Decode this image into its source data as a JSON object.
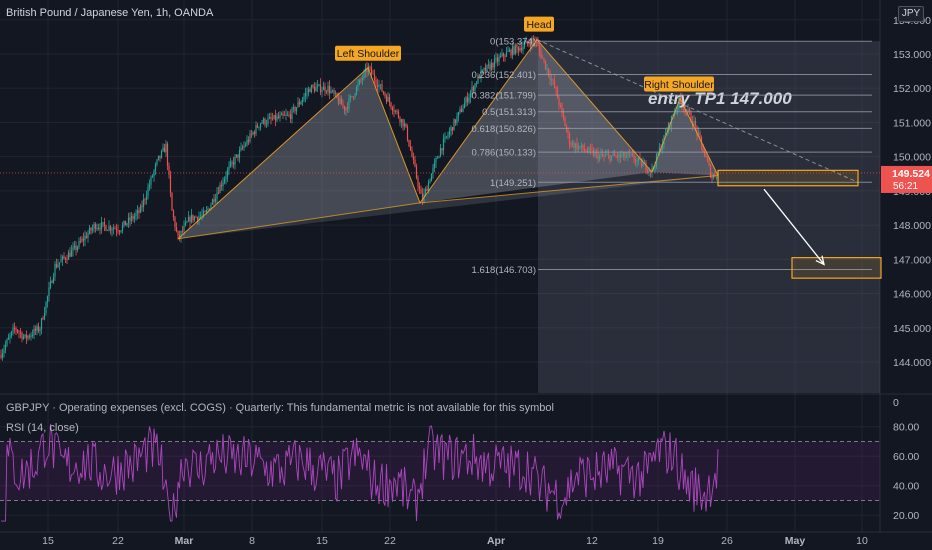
{
  "header": {
    "symbol_title": "British Pound / Japanese Yen, 1h, OANDA",
    "currency_badge": "JPY"
  },
  "fundamental_line": "GBPJPY · Operating expenses (excl. COGS) · Quarterly: This fundamental metric is not available for this symbol",
  "rsi_title": "RSI (14, close)",
  "colors": {
    "background": "#131722",
    "grid": "#1f2430",
    "up": "#26a69a",
    "down": "#ef5350",
    "pattern": "#f5a623",
    "fib": "#9ea4b0",
    "rsi": "#9c27b0",
    "price_tag": "#ef5350"
  },
  "chart_data": [
    {
      "type": "candlestick",
      "title": "British Pound / Japanese Yen, 1h, OANDA",
      "x_axis_labels": [
        "15",
        "22",
        "Mar",
        "8",
        "15",
        "22",
        "Apr",
        "12",
        "19",
        "26",
        "May",
        "10"
      ],
      "y_axis_labels": [
        "154.000",
        "153.000",
        "152.000",
        "151.000",
        "150.000",
        "149.000",
        "148.000",
        "147.000",
        "146.000",
        "145.000",
        "144.000"
      ],
      "ylim": [
        143.55,
        154.35
      ],
      "current_price": "149.524",
      "countdown": "56:21",
      "price_path_anchors": [
        {
          "x": 0,
          "y": 144.2
        },
        {
          "x": 15,
          "y": 145.0
        },
        {
          "x": 25,
          "y": 144.7
        },
        {
          "x": 40,
          "y": 145.0
        },
        {
          "x": 55,
          "y": 146.8
        },
        {
          "x": 75,
          "y": 147.3
        },
        {
          "x": 95,
          "y": 148.0
        },
        {
          "x": 120,
          "y": 147.9
        },
        {
          "x": 140,
          "y": 148.4
        },
        {
          "x": 158,
          "y": 149.9
        },
        {
          "x": 166,
          "y": 150.3
        },
        {
          "x": 172,
          "y": 148.4
        },
        {
          "x": 178,
          "y": 147.6
        },
        {
          "x": 190,
          "y": 148.2
        },
        {
          "x": 205,
          "y": 148.3
        },
        {
          "x": 230,
          "y": 149.7
        },
        {
          "x": 260,
          "y": 151.0
        },
        {
          "x": 290,
          "y": 151.2
        },
        {
          "x": 310,
          "y": 152.0
        },
        {
          "x": 328,
          "y": 152.0
        },
        {
          "x": 345,
          "y": 151.4
        },
        {
          "x": 368,
          "y": 152.6
        },
        {
          "x": 385,
          "y": 151.8
        },
        {
          "x": 405,
          "y": 150.9
        },
        {
          "x": 422,
          "y": 148.7
        },
        {
          "x": 440,
          "y": 150.2
        },
        {
          "x": 460,
          "y": 151.3
        },
        {
          "x": 480,
          "y": 152.4
        },
        {
          "x": 505,
          "y": 153.0
        },
        {
          "x": 535,
          "y": 153.4
        },
        {
          "x": 555,
          "y": 152.0
        },
        {
          "x": 570,
          "y": 150.4
        },
        {
          "x": 600,
          "y": 150.0
        },
        {
          "x": 630,
          "y": 150.0
        },
        {
          "x": 652,
          "y": 149.6
        },
        {
          "x": 670,
          "y": 151.0
        },
        {
          "x": 680,
          "y": 151.7
        },
        {
          "x": 695,
          "y": 150.9
        },
        {
          "x": 712,
          "y": 149.4
        },
        {
          "x": 718,
          "y": 149.55
        }
      ],
      "pattern": {
        "name": "head and shoulders",
        "labels": [
          "Left Shoulder",
          "Head",
          "Right Shoulder"
        ],
        "points": [
          {
            "x": 178,
            "y": 147.6
          },
          {
            "x": 368,
            "y": 152.6
          },
          {
            "x": 420,
            "y": 148.65
          },
          {
            "x": 537,
            "y": 153.42
          },
          {
            "x": 652,
            "y": 149.55
          },
          {
            "x": 680,
            "y": 151.7
          },
          {
            "x": 718,
            "y": 149.45
          }
        ],
        "neckline": [
          {
            "x": 178,
            "y": 147.6
          },
          {
            "x": 420,
            "y": 148.65
          },
          {
            "x": 718,
            "y": 149.45
          }
        ]
      },
      "annotation_text": "entry TP1  147.000",
      "fib_levels": [
        {
          "label": "0(153.374)",
          "value": 153.374
        },
        {
          "label": "0.236(152.401)",
          "value": 152.401
        },
        {
          "label": "0.382(151.799)",
          "value": 151.799
        },
        {
          "label": "0.5(151.313)",
          "value": 151.313
        },
        {
          "label": "0.618(150.826)",
          "value": 150.826
        },
        {
          "label": "0.786(150.133)",
          "value": 150.133
        },
        {
          "label": "1(149.251)",
          "value": 149.251
        },
        {
          "label": "1.618(146.703)",
          "value": 146.703
        }
      ],
      "entry_zone": [
        149.15,
        149.6
      ],
      "target_zone": [
        146.45,
        147.05
      ]
    },
    {
      "type": "line",
      "title": "RSI (14, close)",
      "y_axis_labels": [
        "80.00",
        "60.00",
        "40.00",
        "20.00"
      ],
      "ylim": [
        12,
        90
      ],
      "bands": [
        30,
        70
      ],
      "top_label": "0"
    }
  ]
}
